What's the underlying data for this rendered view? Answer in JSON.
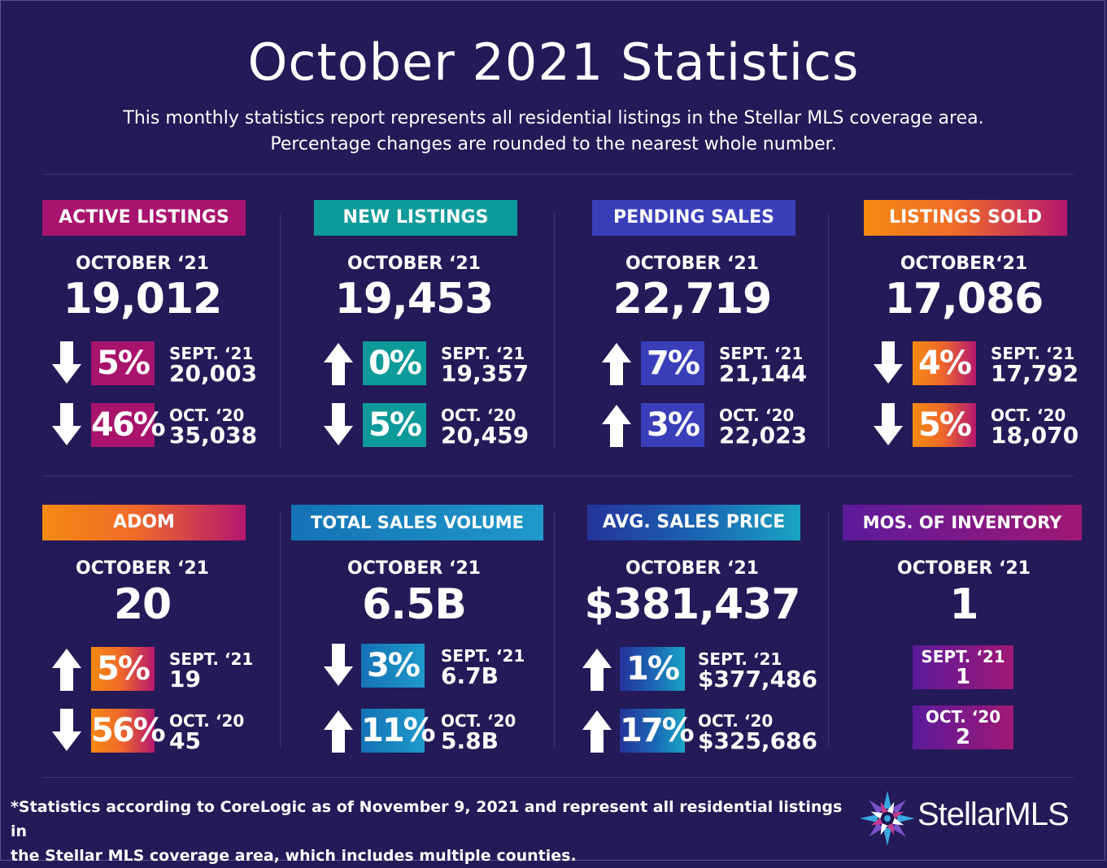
{
  "title": "October 2021 Statistics",
  "subtitle_line1": "This monthly statistics report represents all residential listings in the Stellar MLS coverage area.",
  "subtitle_line2": "Percentage changes are rounded to the nearest whole number.",
  "cards": [
    {
      "label": "ACTIVE LISTINGS",
      "period": "OCTOBER ‘21",
      "value": "19,012",
      "rows": [
        {
          "direction": "down",
          "pct": "5%",
          "cmp_label": "SEPT. ‘21",
          "cmp_value": "20,003"
        },
        {
          "direction": "down",
          "pct": "46%",
          "cmp_label": "OCT. ‘20",
          "cmp_value": "35,038"
        }
      ]
    },
    {
      "label": "NEW LISTINGS",
      "period": "OCTOBER ‘21",
      "value": "19,453",
      "rows": [
        {
          "direction": "up",
          "pct": "0%",
          "cmp_label": "SEPT. ‘21",
          "cmp_value": "19,357"
        },
        {
          "direction": "down",
          "pct": "5%",
          "cmp_label": "OCT. ‘20",
          "cmp_value": "20,459"
        }
      ]
    },
    {
      "label": "PENDING SALES",
      "period": "OCTOBER ‘21",
      "value": "22,719",
      "rows": [
        {
          "direction": "up",
          "pct": "7%",
          "cmp_label": "SEPT. ‘21",
          "cmp_value": "21,144"
        },
        {
          "direction": "up",
          "pct": "3%",
          "cmp_label": "OCT. ‘20",
          "cmp_value": "22,023"
        }
      ]
    },
    {
      "label": "LISTINGS SOLD",
      "period": "OCTOBER‘21",
      "value": "17,086",
      "rows": [
        {
          "direction": "down",
          "pct": "4%",
          "cmp_label": "SEPT. ‘21",
          "cmp_value": "17,792"
        },
        {
          "direction": "down",
          "pct": "5%",
          "cmp_label": "OCT. ‘20",
          "cmp_value": "18,070"
        }
      ]
    },
    {
      "label": "ADOM",
      "period": "OCTOBER ‘21",
      "value": "20",
      "rows": [
        {
          "direction": "up",
          "pct": "5%",
          "cmp_label": "SEPT. ‘21",
          "cmp_value": "19"
        },
        {
          "direction": "down",
          "pct": "56%",
          "cmp_label": "OCT. ‘20",
          "cmp_value": "45"
        }
      ]
    },
    {
      "label": "TOTAL SALES VOLUME",
      "period": "OCTOBER ‘21",
      "value": "6.5B",
      "rows": [
        {
          "direction": "down",
          "pct": "3%",
          "cmp_label": "SEPT. ‘21",
          "cmp_value": "6.7B"
        },
        {
          "direction": "up",
          "pct": "11%",
          "cmp_label": "OCT. ‘20",
          "cmp_value": "5.8B"
        }
      ]
    },
    {
      "label": "AVG. SALES PRICE",
      "period": "OCTOBER ‘21",
      "value": "$381,437",
      "rows": [
        {
          "direction": "up",
          "pct": "1%",
          "cmp_label": "SEPT. ‘21",
          "cmp_value": "$377,486"
        },
        {
          "direction": "up",
          "pct": "17%",
          "cmp_label": "OCT. ‘20",
          "cmp_value": "$325,686"
        }
      ]
    },
    {
      "label": "MOS. OF INVENTORY",
      "period": "OCTOBER ‘21",
      "value": "1",
      "boxes": [
        {
          "cmp_label": "SEPT. ‘21",
          "cmp_value": "1"
        },
        {
          "cmp_label": "OCT. ‘20",
          "cmp_value": "2"
        }
      ]
    }
  ],
  "colors": {
    "background": "#231a57",
    "active_listings": "#a8136d",
    "new_listings": "#0f9a9a",
    "pending_sales": "#3a3fb9",
    "listings_sold": "#f48a12",
    "adom": "#f06b29",
    "total_sales_volume": "#1f99c9",
    "avg_sales_price": "#1b68b4",
    "mos_of_inventory": "#5b1a9b"
  },
  "icons": {
    "arrow_up": "arrow-up-icon",
    "arrow_down": "arrow-down-icon",
    "logo": "stellar-star-icon"
  },
  "footnote_line1": "*Statistics according to CoreLogic as of November 9, 2021 and represent all residential listings in",
  "footnote_line2": "the Stellar MLS coverage area, which includes multiple counties.",
  "logo_text": "StellarMLS"
}
